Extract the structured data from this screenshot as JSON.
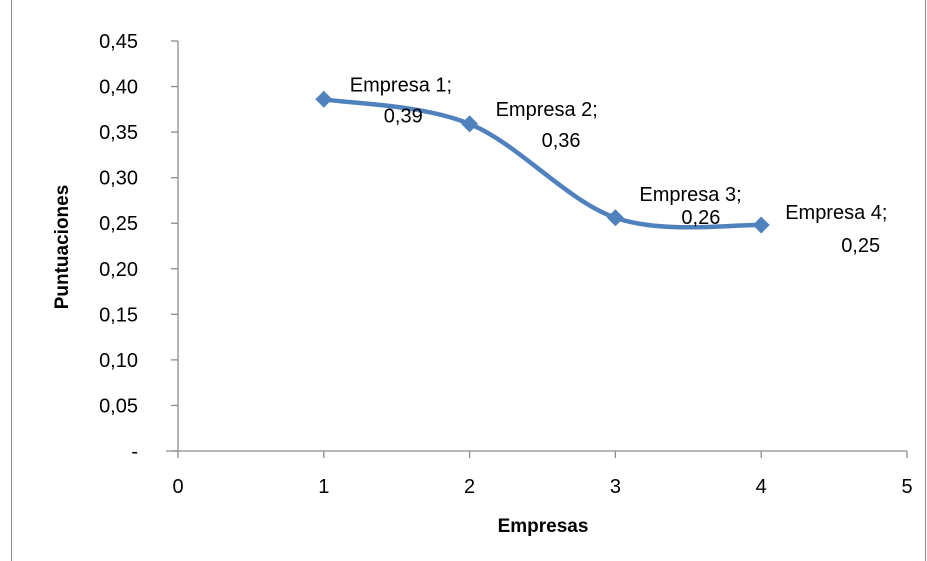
{
  "chart_data": {
    "type": "scatter",
    "style": "smooth-line-with-markers",
    "title": "",
    "xlabel": "Empresas",
    "ylabel": "Puntuaciones",
    "xlim": [
      0,
      5
    ],
    "ylim": [
      0,
      0.45
    ],
    "x_ticks": [
      "0",
      "1",
      "2",
      "3",
      "4",
      "5"
    ],
    "y_ticks": [
      "-",
      "0,05",
      "0,10",
      "0,15",
      "0,20",
      "0,25",
      "0,30",
      "0,35",
      "0,40",
      "0,45"
    ],
    "grid": false,
    "legend": "none",
    "series": [
      {
        "color": "#4f81bd",
        "marker": "diamond",
        "points": [
          {
            "x": 1,
            "y": 0.386,
            "label_line1": "Empresa 1;",
            "label_line2": "0,39"
          },
          {
            "x": 2,
            "y": 0.359,
            "label_line1": "Empresa 2;",
            "label_line2": "0,36"
          },
          {
            "x": 3,
            "y": 0.256,
            "label_line1": "Empresa 3;",
            "label_line2": "0,26"
          },
          {
            "x": 4,
            "y": 0.248,
            "label_line1": "Empresa 4;",
            "label_line2": "0,25"
          }
        ]
      }
    ]
  }
}
